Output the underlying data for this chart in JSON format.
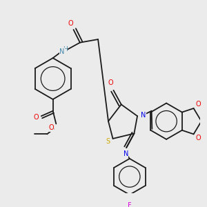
{
  "bg_color": "#ebebeb",
  "bond_color": "#1a1a1a",
  "atom_colors": {
    "N": "#0000ee",
    "O": "#ee0000",
    "S": "#ccaa00",
    "F": "#dd00dd",
    "NH": "#4488aa",
    "C": "#1a1a1a"
  },
  "figsize": [
    3.0,
    3.0
  ],
  "dpi": 100
}
